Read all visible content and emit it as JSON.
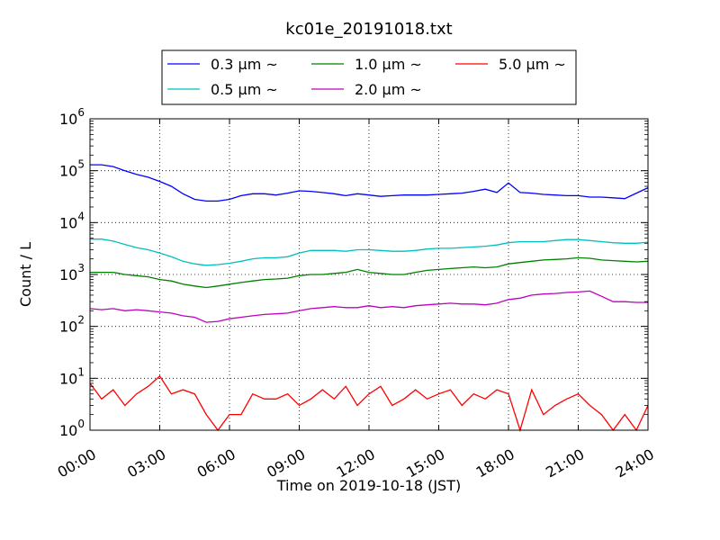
{
  "chart_data": {
    "type": "line",
    "title": "kc01e_20191018.txt",
    "xlabel": "Time on 2019-10-18 (JST)",
    "ylabel": "Count / L",
    "x_unit": "hours",
    "xlim": [
      0,
      24
    ],
    "ylim": [
      1,
      1000000
    ],
    "y_scale": "log",
    "grid": true,
    "legend_position": "top-center",
    "x_ticks": [
      "00:00",
      "03:00",
      "06:00",
      "09:00",
      "12:00",
      "15:00",
      "18:00",
      "21:00",
      "24:00"
    ],
    "y_ticks": [
      {
        "value": 1,
        "base": "10",
        "exp": "0"
      },
      {
        "value": 10,
        "base": "10",
        "exp": "1"
      },
      {
        "value": 100,
        "base": "10",
        "exp": "2"
      },
      {
        "value": 1000,
        "base": "10",
        "exp": "3"
      },
      {
        "value": 10000,
        "base": "10",
        "exp": "4"
      },
      {
        "value": 100000,
        "base": "10",
        "exp": "5"
      },
      {
        "value": 1000000,
        "base": "10",
        "exp": "6"
      }
    ],
    "series": [
      {
        "name": "0.3 μm ~",
        "color": "#0000ff",
        "x": [
          0,
          0.5,
          1,
          1.5,
          2,
          2.5,
          3,
          3.5,
          4,
          4.5,
          5,
          5.5,
          6,
          6.5,
          7,
          7.5,
          8,
          8.5,
          9,
          9.5,
          10,
          10.5,
          11,
          11.5,
          12,
          12.5,
          13,
          13.5,
          14,
          14.5,
          15,
          15.5,
          16,
          16.5,
          17,
          17.5,
          18,
          18.5,
          19,
          19.5,
          20,
          20.5,
          21,
          21.5,
          22,
          22.5,
          23,
          23.5,
          24
        ],
        "values": [
          130000,
          130000,
          120000,
          100000,
          85000,
          75000,
          62000,
          50000,
          36000,
          28000,
          26000,
          26000,
          28000,
          33000,
          36000,
          36000,
          34000,
          37000,
          41000,
          40000,
          38000,
          36000,
          33000,
          36000,
          34000,
          32000,
          33000,
          34000,
          34000,
          34000,
          35000,
          36000,
          37000,
          40000,
          44000,
          38000,
          58000,
          38000,
          37000,
          35000,
          34000,
          33000,
          33000,
          31000,
          31000,
          30000,
          29000,
          37000,
          47000
        ]
      },
      {
        "name": "0.5 μm ~",
        "color": "#00bfbf",
        "x": [
          0,
          0.5,
          1,
          1.5,
          2,
          2.5,
          3,
          3.5,
          4,
          4.5,
          5,
          5.5,
          6,
          6.5,
          7,
          7.5,
          8,
          8.5,
          9,
          9.5,
          10,
          10.5,
          11,
          11.5,
          12,
          12.5,
          13,
          13.5,
          14,
          14.5,
          15,
          15.5,
          16,
          16.5,
          17,
          17.5,
          18,
          18.5,
          19,
          19.5,
          20,
          20.5,
          21,
          21.5,
          22,
          22.5,
          23,
          23.5,
          24
        ],
        "values": [
          4800,
          4800,
          4400,
          3800,
          3300,
          3000,
          2600,
          2200,
          1800,
          1600,
          1500,
          1550,
          1650,
          1800,
          2000,
          2100,
          2100,
          2200,
          2600,
          2900,
          2900,
          2900,
          2800,
          3000,
          3000,
          2900,
          2800,
          2800,
          2900,
          3100,
          3200,
          3200,
          3300,
          3400,
          3500,
          3700,
          4100,
          4300,
          4300,
          4300,
          4500,
          4700,
          4700,
          4500,
          4300,
          4100,
          4000,
          4000,
          4200
        ]
      },
      {
        "name": "1.0 μm ~",
        "color": "#008000",
        "x": [
          0,
          0.5,
          1,
          1.5,
          2,
          2.5,
          3,
          3.5,
          4,
          4.5,
          5,
          5.5,
          6,
          6.5,
          7,
          7.5,
          8,
          8.5,
          9,
          9.5,
          10,
          10.5,
          11,
          11.5,
          12,
          12.5,
          13,
          13.5,
          14,
          14.5,
          15,
          15.5,
          16,
          16.5,
          17,
          17.5,
          18,
          18.5,
          19,
          19.5,
          20,
          20.5,
          21,
          21.5,
          22,
          22.5,
          23,
          23.5,
          24
        ],
        "values": [
          1100,
          1100,
          1100,
          1000,
          950,
          900,
          800,
          750,
          650,
          600,
          560,
          600,
          650,
          700,
          750,
          800,
          820,
          850,
          950,
          1000,
          1000,
          1050,
          1100,
          1250,
          1100,
          1050,
          1000,
          1000,
          1100,
          1200,
          1250,
          1300,
          1350,
          1400,
          1350,
          1400,
          1600,
          1700,
          1800,
          1900,
          1950,
          2000,
          2100,
          2050,
          1900,
          1850,
          1800,
          1750,
          1800
        ]
      },
      {
        "name": "2.0 μm ~",
        "color": "#bf00bf",
        "x": [
          0,
          0.5,
          1,
          1.5,
          2,
          2.5,
          3,
          3.5,
          4,
          4.5,
          5,
          5.5,
          6,
          6.5,
          7,
          7.5,
          8,
          8.5,
          9,
          9.5,
          10,
          10.5,
          11,
          11.5,
          12,
          12.5,
          13,
          13.5,
          14,
          14.5,
          15,
          15.5,
          16,
          16.5,
          17,
          17.5,
          18,
          18.5,
          19,
          19.5,
          20,
          20.5,
          21,
          21.5,
          22,
          22.5,
          23,
          23.5,
          24
        ],
        "values": [
          220,
          210,
          220,
          200,
          210,
          200,
          190,
          180,
          160,
          150,
          120,
          125,
          140,
          150,
          160,
          170,
          175,
          180,
          200,
          220,
          230,
          240,
          230,
          230,
          250,
          230,
          240,
          230,
          250,
          260,
          270,
          280,
          270,
          270,
          260,
          280,
          330,
          350,
          400,
          420,
          430,
          450,
          460,
          480,
          380,
          300,
          300,
          290,
          290
        ]
      },
      {
        "name": "5.0 μm ~",
        "color": "#ff0000",
        "x": [
          0,
          0.5,
          1,
          1.5,
          2,
          2.5,
          3,
          3.5,
          4,
          4.5,
          5,
          5.5,
          6,
          6.5,
          7,
          7.5,
          8,
          8.5,
          9,
          9.5,
          10,
          10.5,
          11,
          11.5,
          12,
          12.5,
          13,
          13.5,
          14,
          14.5,
          15,
          15.5,
          16,
          16.5,
          17,
          17.5,
          18,
          18.5,
          19,
          19.5,
          20,
          20.5,
          21,
          21.5,
          22,
          22.5,
          23,
          23.5,
          24
        ],
        "values": [
          8,
          4,
          6,
          3,
          5,
          7,
          11,
          5,
          6,
          5,
          2,
          1,
          2,
          2,
          5,
          4,
          4,
          5,
          3,
          4,
          6,
          4,
          7,
          3,
          5,
          7,
          3,
          4,
          6,
          4,
          5,
          6,
          3,
          5,
          4,
          6,
          5,
          1,
          6,
          2,
          3,
          4,
          5,
          3,
          2,
          1,
          2,
          1,
          3
        ]
      }
    ]
  }
}
